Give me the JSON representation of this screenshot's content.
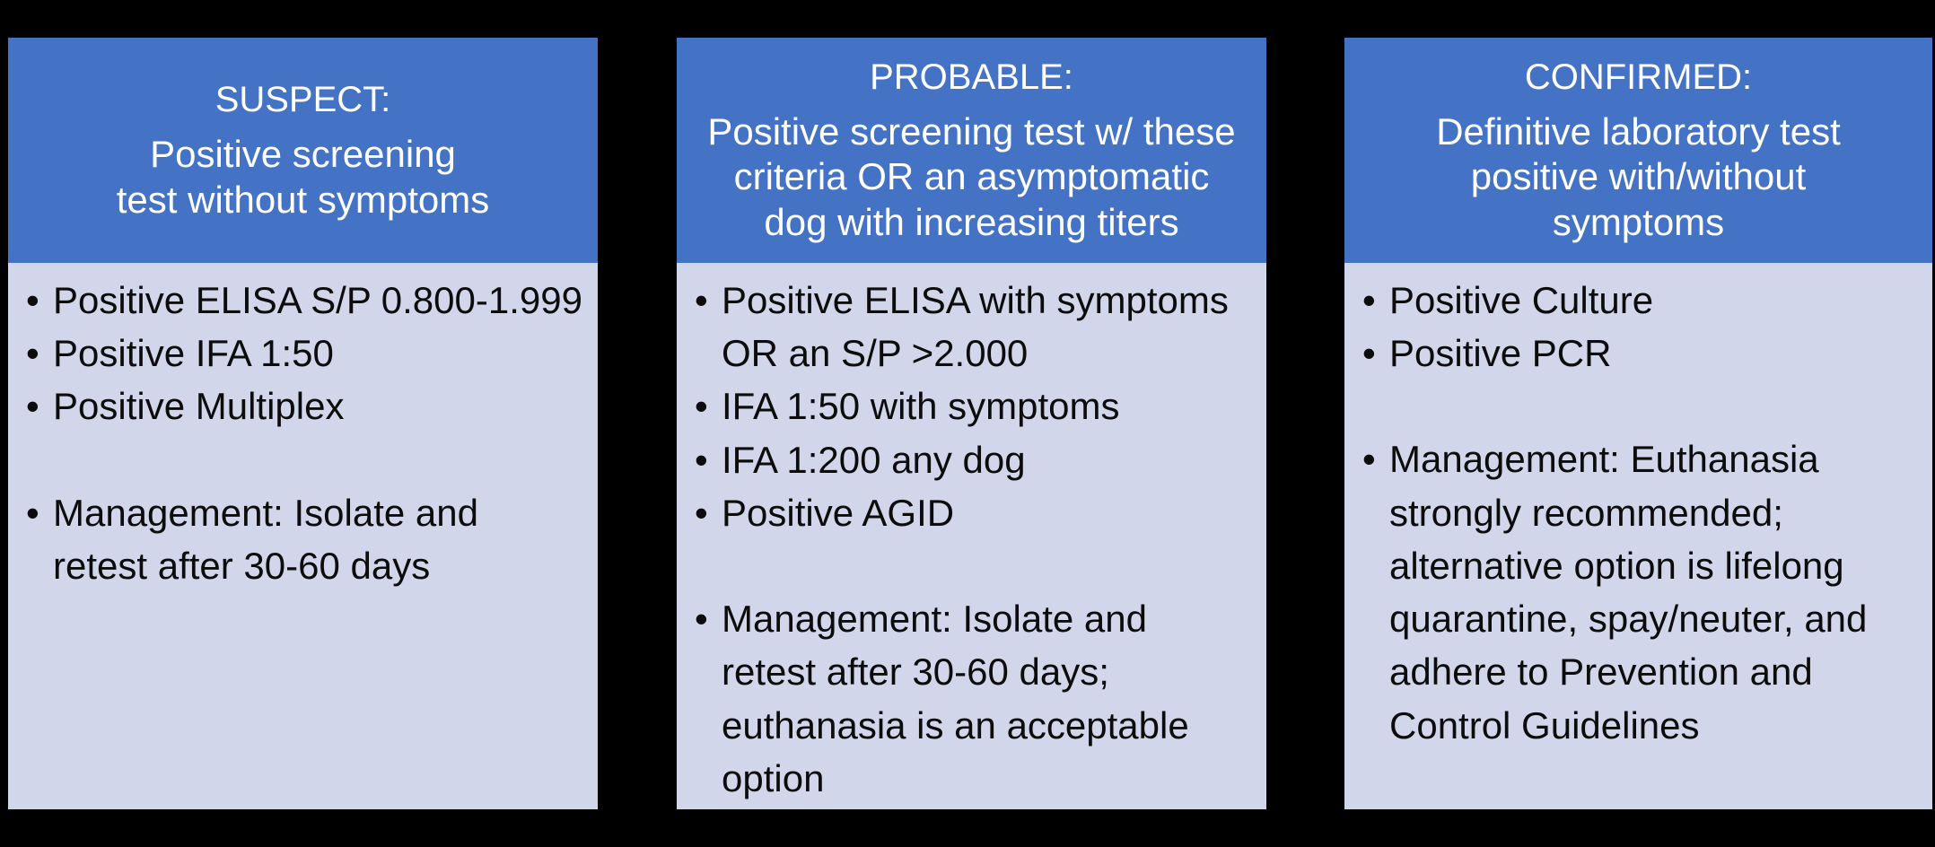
{
  "colors": {
    "page_bg": "#000000",
    "header_bg": "#4472C4",
    "body_bg": "#D1D6EA",
    "header_text": "#FFFFFF",
    "body_text": "#0C0C0C"
  },
  "cards": [
    {
      "title": "SUSPECT:",
      "subtitle_lines": [
        "Positive screening",
        "test without symptoms"
      ],
      "criteria": [
        "Positive ELISA S/P 0.800-1.999",
        "Positive IFA 1:50",
        "Positive Multiplex"
      ],
      "management": "Management: Isolate and\nretest after 30-60 days"
    },
    {
      "title": "PROBABLE:",
      "subtitle_lines": [
        "Positive screening test w/ these",
        "criteria OR an asymptomatic",
        "dog with increasing titers"
      ],
      "criteria": [
        "Positive ELISA with symptoms\nOR an S/P >2.000",
        "IFA 1:50 with symptoms",
        "IFA 1:200 any dog",
        "Positive AGID"
      ],
      "management": "Management: Isolate and\nretest after 30-60 days;\neuthanasia is an acceptable\noption"
    },
    {
      "title": "CONFIRMED:",
      "subtitle_lines": [
        "Definitive laboratory test",
        "positive with/without",
        "symptoms"
      ],
      "criteria": [
        "Positive Culture",
        "Positive PCR"
      ],
      "management": "Management: Euthanasia\nstrongly recommended;\nalternative option is lifelong\nquarantine, spay/neuter, and\nadhere to Prevention and\nControl Guidelines"
    }
  ]
}
